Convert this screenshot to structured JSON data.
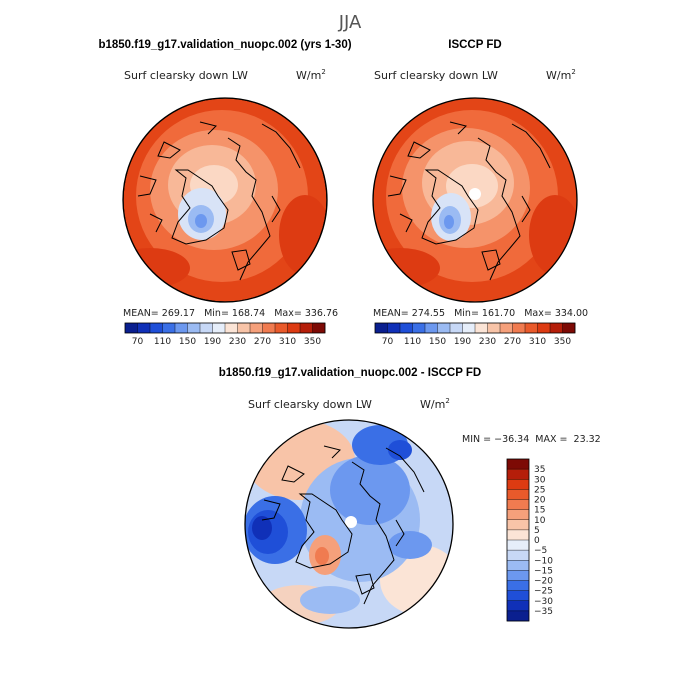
{
  "title": "JJA",
  "panels": {
    "model": {
      "header": "b1850.f19_g17.validation_nuopc.002 (yrs 1-30)",
      "variable": "Surf clearsky down LW",
      "units_base": "W/m",
      "units_exp": "2",
      "stats": "MEAN= 269.17   Min= 168.74   Max= 336.76"
    },
    "obs": {
      "header": "ISCCP FD",
      "variable": "Surf clearsky down LW",
      "units_base": "W/m",
      "units_exp": "2",
      "stats": "MEAN= 274.55   Min= 161.70   Max= 334.00"
    },
    "diff": {
      "header": "b1850.f19_g17.validation_nuopc.002 - ISCCP FD",
      "variable": "Surf clearsky down LW",
      "units_base": "W/m",
      "units_exp": "2",
      "stats": "MIN = −36.34  MAX =  23.32"
    }
  },
  "chart_data": [
    {
      "type": "heatmap",
      "projection": "north polar stereographic",
      "title": "b1850.f19_g17.validation_nuopc.002 (yrs 1-30)",
      "subtitle": "Surf clearsky down LW",
      "units": "W/m^2",
      "mean": 269.17,
      "min": 168.74,
      "max": 336.76,
      "colorbar": {
        "levels": [
          70,
          90,
          110,
          130,
          150,
          170,
          190,
          210,
          230,
          250,
          270,
          290,
          310,
          330,
          350
        ],
        "tick_labels": [
          "70",
          "110",
          "150",
          "190",
          "230",
          "270",
          "310",
          "350"
        ],
        "colors": [
          "#0a1f8f",
          "#1030b8",
          "#1f4fd8",
          "#3a6fe6",
          "#6c98ef",
          "#9bbbf3",
          "#c7d8f6",
          "#e6eefa",
          "#fbe4d6",
          "#f8c4a8",
          "#f5a07b",
          "#f07b50",
          "#e95a2b",
          "#dd3b12",
          "#b51e0a",
          "#7d0a05"
        ]
      }
    },
    {
      "type": "heatmap",
      "projection": "north polar stereographic",
      "title": "ISCCP FD",
      "subtitle": "Surf clearsky down LW",
      "units": "W/m^2",
      "mean": 274.55,
      "min": 161.7,
      "max": 334.0,
      "colorbar": {
        "levels": [
          70,
          90,
          110,
          130,
          150,
          170,
          190,
          210,
          230,
          250,
          270,
          290,
          310,
          330,
          350
        ],
        "tick_labels": [
          "70",
          "110",
          "150",
          "190",
          "230",
          "270",
          "310",
          "350"
        ],
        "colors": [
          "#0a1f8f",
          "#1030b8",
          "#1f4fd8",
          "#3a6fe6",
          "#6c98ef",
          "#9bbbf3",
          "#c7d8f6",
          "#e6eefa",
          "#fbe4d6",
          "#f8c4a8",
          "#f5a07b",
          "#f07b50",
          "#e95a2b",
          "#dd3b12",
          "#b51e0a",
          "#7d0a05"
        ]
      }
    },
    {
      "type": "heatmap",
      "projection": "north polar stereographic",
      "title": "b1850.f19_g17.validation_nuopc.002 - ISCCP FD",
      "subtitle": "Surf clearsky down LW",
      "units": "W/m^2",
      "min": -36.34,
      "max": 23.32,
      "colorbar": {
        "orientation": "vertical",
        "levels": [
          -35,
          -30,
          -25,
          -20,
          -15,
          -10,
          -5,
          0,
          5,
          10,
          15,
          20,
          25,
          30,
          35
        ],
        "tick_labels": [
          "35",
          "30",
          "25",
          "20",
          "15",
          "10",
          "5",
          "0",
          "−5",
          "−10",
          "−15",
          "−20",
          "−25",
          "−30",
          "−35"
        ],
        "colors": [
          "#7d0a05",
          "#b51e0a",
          "#dd3b12",
          "#e95a2b",
          "#f07b50",
          "#f5a07b",
          "#f8c4a8",
          "#fbe4d6",
          "#e6eefa",
          "#c7d8f6",
          "#9bbbf3",
          "#6c98ef",
          "#3a6fe6",
          "#1f4fd8",
          "#1030b8",
          "#0a1f8f"
        ]
      }
    }
  ]
}
